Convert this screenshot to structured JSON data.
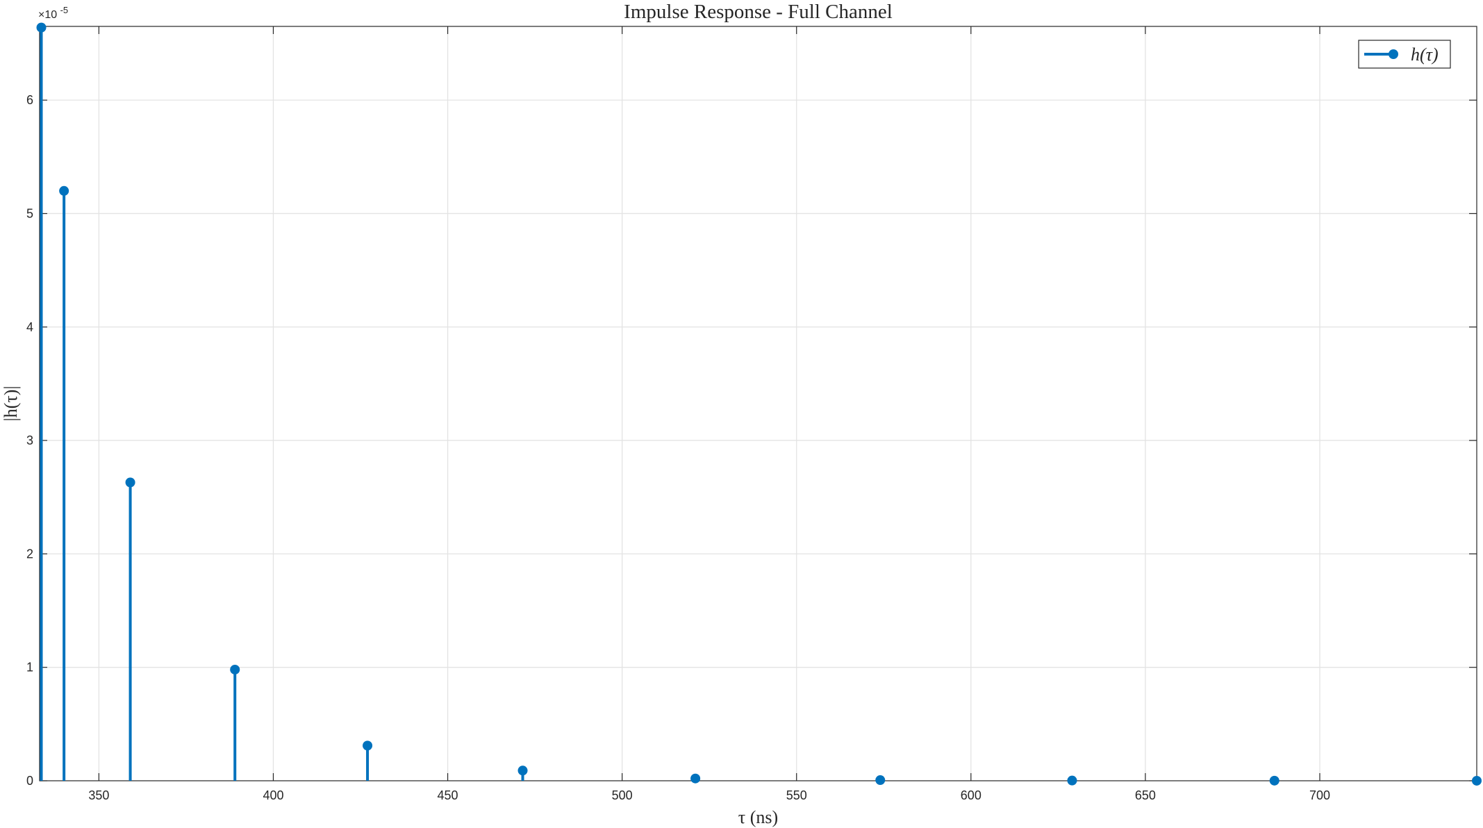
{
  "chart_data": {
    "type": "stem",
    "title": "Impulse Response - Full Channel",
    "xlabel": "τ (ns)",
    "ylabel": "|h(τ)|",
    "y_exponent_label": "×10",
    "y_exponent_power": "-5",
    "xlim": [
      333,
      745
    ],
    "ylim": [
      0,
      6.65
    ],
    "x_ticks": [
      350,
      400,
      450,
      500,
      550,
      600,
      650,
      700
    ],
    "y_ticks": [
      0,
      1,
      2,
      3,
      4,
      5,
      6
    ],
    "grid": true,
    "legend_placement": "top-right",
    "color": "#0072BD",
    "series": [
      {
        "name": "h(τ)",
        "x": [
          333.5,
          340,
          359,
          389,
          427,
          471.5,
          521,
          574,
          629,
          687,
          745
        ],
        "y": [
          6.64,
          5.2,
          2.63,
          0.98,
          0.31,
          0.09,
          0.02,
          0.006,
          0.002,
          0.001,
          0.0003
        ]
      }
    ]
  }
}
